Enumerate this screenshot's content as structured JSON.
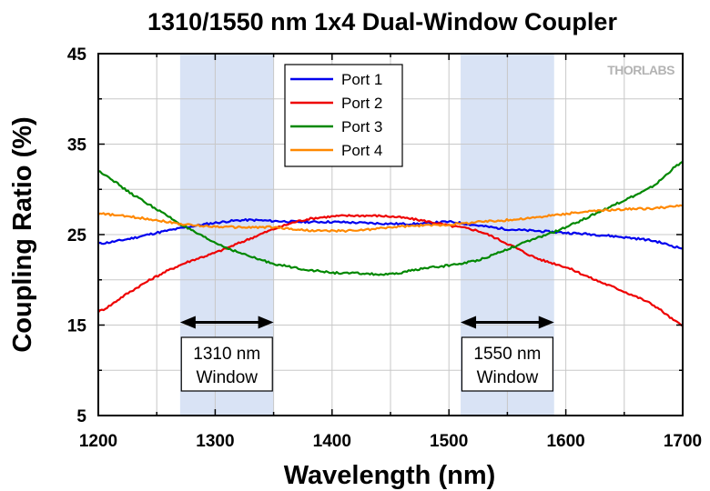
{
  "chart_data": {
    "type": "line",
    "title": "1310/1550 nm 1x4 Dual-Window Coupler",
    "xlabel": "Wavelength (nm)",
    "ylabel": "Coupling Ratio (%)",
    "xlim": [
      1200,
      1700
    ],
    "ylim": [
      5,
      45
    ],
    "xticks": [
      1200,
      1300,
      1400,
      1500,
      1600,
      1700
    ],
    "yticks": [
      5,
      15,
      25,
      35,
      45
    ],
    "grid": true,
    "legend_position": "top-center",
    "logo_text": "THORLABS",
    "bands": [
      {
        "start": 1270,
        "end": 1350,
        "label_line1": "1310 nm",
        "label_line2": "Window",
        "color": "#d9e3f5"
      },
      {
        "start": 1510,
        "end": 1590,
        "label_line1": "1550 nm",
        "label_line2": "Window",
        "color": "#d9e3f5"
      }
    ],
    "series": [
      {
        "name": "Port 1",
        "color": "#0000ee",
        "x": [
          1200,
          1225,
          1250,
          1275,
          1300,
          1325,
          1350,
          1375,
          1400,
          1425,
          1450,
          1475,
          1500,
          1525,
          1550,
          1575,
          1600,
          1625,
          1650,
          1675,
          1700
        ],
        "y": [
          24.0,
          24.5,
          25.2,
          25.8,
          26.3,
          26.6,
          26.5,
          26.4,
          26.4,
          26.3,
          26.2,
          26.2,
          26.4,
          26.0,
          25.6,
          25.4,
          25.2,
          25.0,
          24.7,
          24.3,
          23.5
        ]
      },
      {
        "name": "Port 2",
        "color": "#ee0000",
        "x": [
          1200,
          1225,
          1250,
          1275,
          1300,
          1325,
          1350,
          1375,
          1400,
          1425,
          1450,
          1475,
          1500,
          1525,
          1550,
          1575,
          1600,
          1625,
          1650,
          1675,
          1700
        ],
        "y": [
          16.5,
          18.5,
          20.4,
          21.9,
          23.0,
          24.3,
          25.6,
          26.6,
          27.0,
          27.1,
          27.0,
          26.6,
          26.0,
          25.4,
          24.0,
          22.4,
          21.4,
          20.0,
          18.7,
          17.2,
          15.0
        ]
      },
      {
        "name": "Port 3",
        "color": "#008800",
        "x": [
          1200,
          1225,
          1250,
          1275,
          1300,
          1325,
          1350,
          1375,
          1400,
          1425,
          1450,
          1475,
          1500,
          1525,
          1550,
          1575,
          1600,
          1625,
          1650,
          1675,
          1700
        ],
        "y": [
          32.0,
          29.8,
          27.8,
          25.8,
          24.1,
          22.8,
          21.8,
          21.2,
          20.8,
          20.7,
          20.6,
          21.2,
          21.6,
          22.2,
          23.4,
          24.6,
          25.8,
          27.3,
          28.8,
          30.4,
          33.0
        ]
      },
      {
        "name": "Port 4",
        "color": "#ff8800",
        "x": [
          1200,
          1225,
          1250,
          1275,
          1300,
          1325,
          1350,
          1375,
          1400,
          1425,
          1450,
          1475,
          1500,
          1525,
          1550,
          1575,
          1600,
          1625,
          1650,
          1675,
          1700
        ],
        "y": [
          27.3,
          27.0,
          26.6,
          26.1,
          25.9,
          25.8,
          25.8,
          25.5,
          25.4,
          25.5,
          25.8,
          26.0,
          26.1,
          26.4,
          26.6,
          26.9,
          27.3,
          27.6,
          27.8,
          27.9,
          28.2
        ]
      }
    ]
  }
}
